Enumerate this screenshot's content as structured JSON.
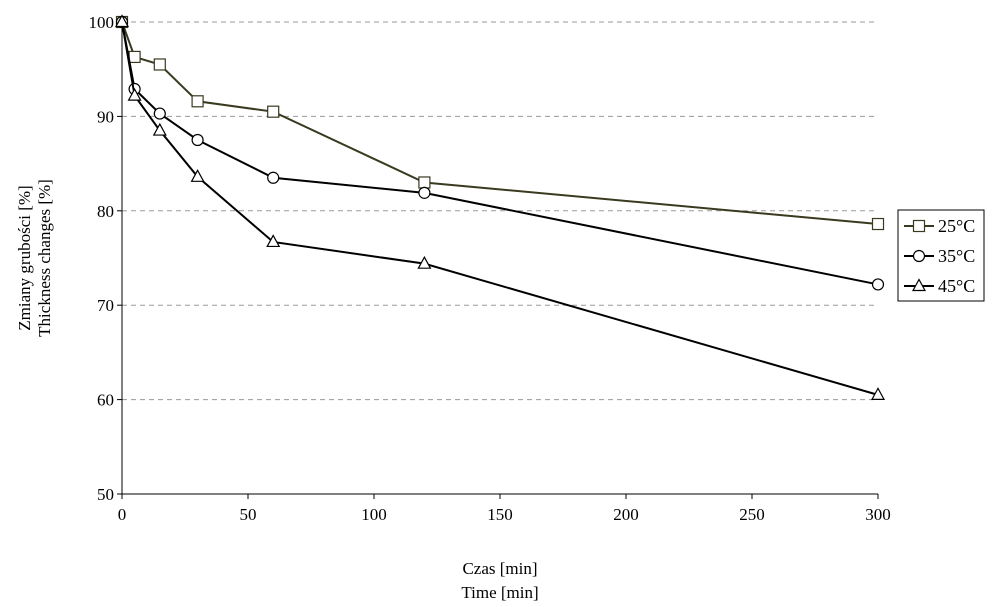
{
  "chart_data": {
    "type": "line",
    "xlabel": [
      "Czas [min]",
      "Time [min]"
    ],
    "ylabel": [
      "Zmiany grubości [%]",
      "Thickness changes [%]"
    ],
    "xlim": [
      0,
      300
    ],
    "ylim": [
      50,
      100
    ],
    "xticks": [
      "0",
      "50",
      "100",
      "150",
      "200",
      "250",
      "300"
    ],
    "yticks": [
      "50",
      "60",
      "70",
      "80",
      "90",
      "100"
    ],
    "grid": "horizontal dashed",
    "legend_position": "right",
    "series": [
      {
        "name": "25°C",
        "marker": "square",
        "color": "#3a3a20",
        "points": [
          [
            0,
            100
          ],
          [
            5,
            96.3
          ],
          [
            15,
            95.5
          ],
          [
            30,
            91.6
          ],
          [
            60,
            90.5
          ],
          [
            120,
            83.0
          ],
          [
            300,
            78.6
          ]
        ]
      },
      {
        "name": "35°C",
        "marker": "circle",
        "color": "#000000",
        "points": [
          [
            0,
            100
          ],
          [
            5,
            92.9
          ],
          [
            15,
            90.3
          ],
          [
            30,
            87.5
          ],
          [
            60,
            83.5
          ],
          [
            120,
            81.9
          ],
          [
            300,
            72.2
          ]
        ]
      },
      {
        "name": "45°C",
        "marker": "triangle",
        "color": "#000000",
        "points": [
          [
            0,
            100
          ],
          [
            5,
            92.2
          ],
          [
            15,
            88.5
          ],
          [
            30,
            83.6
          ],
          [
            60,
            76.7
          ],
          [
            120,
            74.4
          ],
          [
            300,
            60.5
          ]
        ]
      }
    ]
  }
}
